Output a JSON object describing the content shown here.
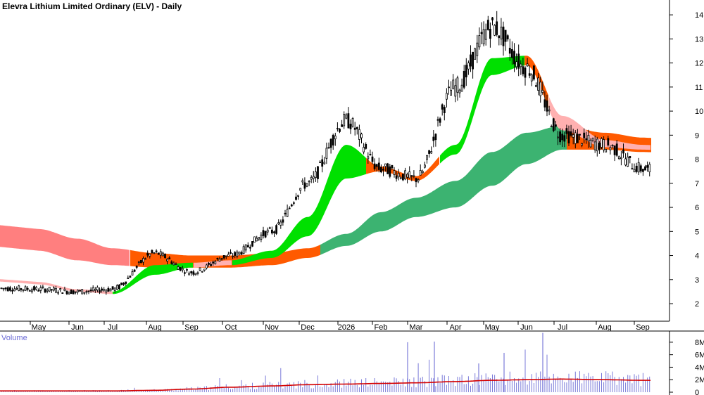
{
  "chart_data": {
    "type": "candlestick",
    "title": "Elevra Lithium Limited Ordinary (ELV) - Daily",
    "price_axis": {
      "ticks": [
        "2",
        "3",
        "4",
        "5",
        "6",
        "7",
        "8",
        "9",
        "10",
        "11",
        "12",
        "13",
        "14"
      ],
      "range": [
        1.3,
        14.5
      ]
    },
    "x_axis": {
      "labels": [
        "May",
        "Jun",
        "Jul",
        "Aug",
        "Sep",
        "Oct",
        "Nov",
        "Dec",
        "2026",
        "Feb",
        "Mar",
        "Apr",
        "May",
        "Jun",
        "Jul",
        "Aug",
        "Sep"
      ]
    },
    "volume_panel": {
      "label": "Volume",
      "ticks": [
        "0",
        "2M",
        "4M",
        "6M",
        "8M"
      ],
      "range": [
        0,
        9
      ],
      "spikes_M": [
        8,
        8.1,
        4.6,
        6.3,
        9.5
      ],
      "baseline_M": 0.5,
      "ma_M": [
        0.2,
        0.2,
        0.2,
        0.3,
        0.5,
        0.8,
        1.0,
        1.2,
        1.3,
        1.4,
        1.5,
        1.7,
        1.9,
        2.0,
        2.1,
        2.0,
        1.9
      ]
    },
    "price_keypoints": {
      "months": [
        "May",
        "Jun",
        "Jul",
        "Aug",
        "Sep",
        "Oct",
        "Nov",
        "Dec",
        "2026",
        "Feb",
        "Mar",
        "Apr",
        "May",
        "Jun",
        "Jul",
        "Aug",
        "Sep"
      ],
      "close": [
        2.6,
        2.5,
        2.6,
        4.1,
        3.3,
        4.0,
        5.0,
        7.0,
        9.6,
        7.6,
        7.2,
        11.0,
        13.5,
        11.8,
        9.0,
        8.6,
        7.6
      ]
    },
    "ribbons": {
      "short": {
        "upper": [
          2.9,
          2.6,
          2.5,
          3.6,
          3.7,
          3.8,
          4.2,
          5.6,
          8.6,
          7.7,
          7.3,
          8.6,
          12.2,
          12.3,
          9.8,
          8.8,
          8.6
        ],
        "lower": [
          2.8,
          2.5,
          2.4,
          3.2,
          3.5,
          3.6,
          3.9,
          4.8,
          7.2,
          7.5,
          7.1,
          8.2,
          11.5,
          11.9,
          9.2,
          8.5,
          8.4
        ]
      },
      "long": {
        "upper": [
          5.1,
          4.7,
          4.3,
          4.1,
          4.0,
          4.0,
          4.1,
          4.3,
          4.9,
          5.8,
          6.4,
          7.1,
          8.3,
          9.1,
          9.4,
          9.1,
          8.9
        ],
        "lower": [
          4.2,
          3.8,
          3.6,
          3.5,
          3.5,
          3.5,
          3.6,
          3.9,
          4.4,
          5.0,
          5.6,
          6.0,
          6.9,
          7.8,
          8.4,
          8.4,
          8.3
        ]
      }
    },
    "colors": {
      "bull_short": "#00e000",
      "bear_short": "#ff5a00",
      "pink": "#ffb0b0",
      "bull_long": "#3cb371",
      "bear_long_pink": "#ff7f7f",
      "bear_long_orange": "#ff5a00",
      "candle": "#000000",
      "volume_bar": "#7b7bd9",
      "volume_ma": "#d40000"
    }
  }
}
